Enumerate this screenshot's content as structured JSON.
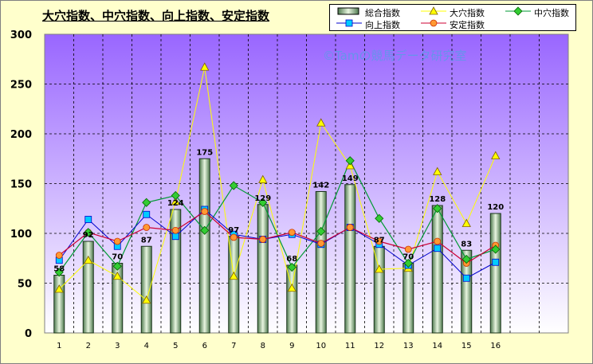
{
  "title": "大穴指数、中穴指数、向上指数、安定指数",
  "watermark": "©Tamの競馬データ研究室",
  "colors": {
    "background": "#ffffcc",
    "plot_top": "#9966ff",
    "plot_bottom": "#ffffff",
    "bar_fill_dark": "#4f7a4f",
    "bar_fill_light": "#e8f5e0",
    "daiketsu": "#ffff00",
    "chuketsu": "#009933",
    "koujou": "#00ccff",
    "antei": "#ff6600",
    "antei_line": "#cc0033",
    "koujou_line": "#0000cc"
  },
  "legend": [
    {
      "key": "sogo",
      "label": "総合指数",
      "icon": "bar-swatch"
    },
    {
      "key": "daiketsu",
      "label": "大穴指数",
      "icon": "triangle-marker"
    },
    {
      "key": "chuketsu",
      "label": "中穴指数",
      "icon": "diamond-marker"
    },
    {
      "key": "koujou",
      "label": "向上指数",
      "icon": "square-marker"
    },
    {
      "key": "antei",
      "label": "安定指数",
      "icon": "circle-marker"
    }
  ],
  "chart_data": {
    "type": "bar",
    "title": "大穴指数、中穴指数、向上指数、安定指数",
    "categories": [
      "1",
      "2",
      "3",
      "4",
      "5",
      "6",
      "7",
      "8",
      "9",
      "10",
      "11",
      "12",
      "13",
      "14",
      "15",
      "16"
    ],
    "ylim": [
      0,
      300
    ],
    "yticks": [
      0,
      50,
      100,
      150,
      200,
      250,
      300
    ],
    "grid": true,
    "legend_position": "top-right",
    "series": [
      {
        "name": "総合指数",
        "type": "bar",
        "values": [
          58,
          92,
          70,
          87,
          124,
          175,
          97,
          129,
          68,
          142,
          149,
          87,
          70,
          128,
          83,
          120
        ],
        "labels": [
          "58",
          "92",
          "70",
          "87",
          "124",
          "175",
          "97",
          "129",
          "68",
          "142",
          "149",
          "87",
          "70",
          "128",
          "83",
          "120"
        ]
      },
      {
        "name": "大穴指数",
        "type": "line",
        "marker": "triangle",
        "values": [
          44,
          73,
          57,
          33,
          132,
          267,
          57,
          154,
          45,
          211,
          168,
          64,
          65,
          162,
          110,
          178
        ]
      },
      {
        "name": "中穴指数",
        "type": "line",
        "marker": "diamond",
        "values": [
          61,
          101,
          67,
          131,
          138,
          103,
          148,
          131,
          66,
          102,
          173,
          115,
          70,
          125,
          74,
          84
        ]
      },
      {
        "name": "向上指数",
        "type": "line",
        "marker": "square",
        "values": [
          73,
          114,
          87,
          119,
          97,
          124,
          99,
          94,
          99,
          89,
          106,
          89,
          68,
          85,
          55,
          71
        ]
      },
      {
        "name": "安定指数",
        "type": "line",
        "marker": "circle",
        "values": [
          78,
          101,
          92,
          106,
          103,
          122,
          96,
          94,
          101,
          90,
          106,
          92,
          84,
          92,
          70,
          88
        ]
      }
    ]
  }
}
